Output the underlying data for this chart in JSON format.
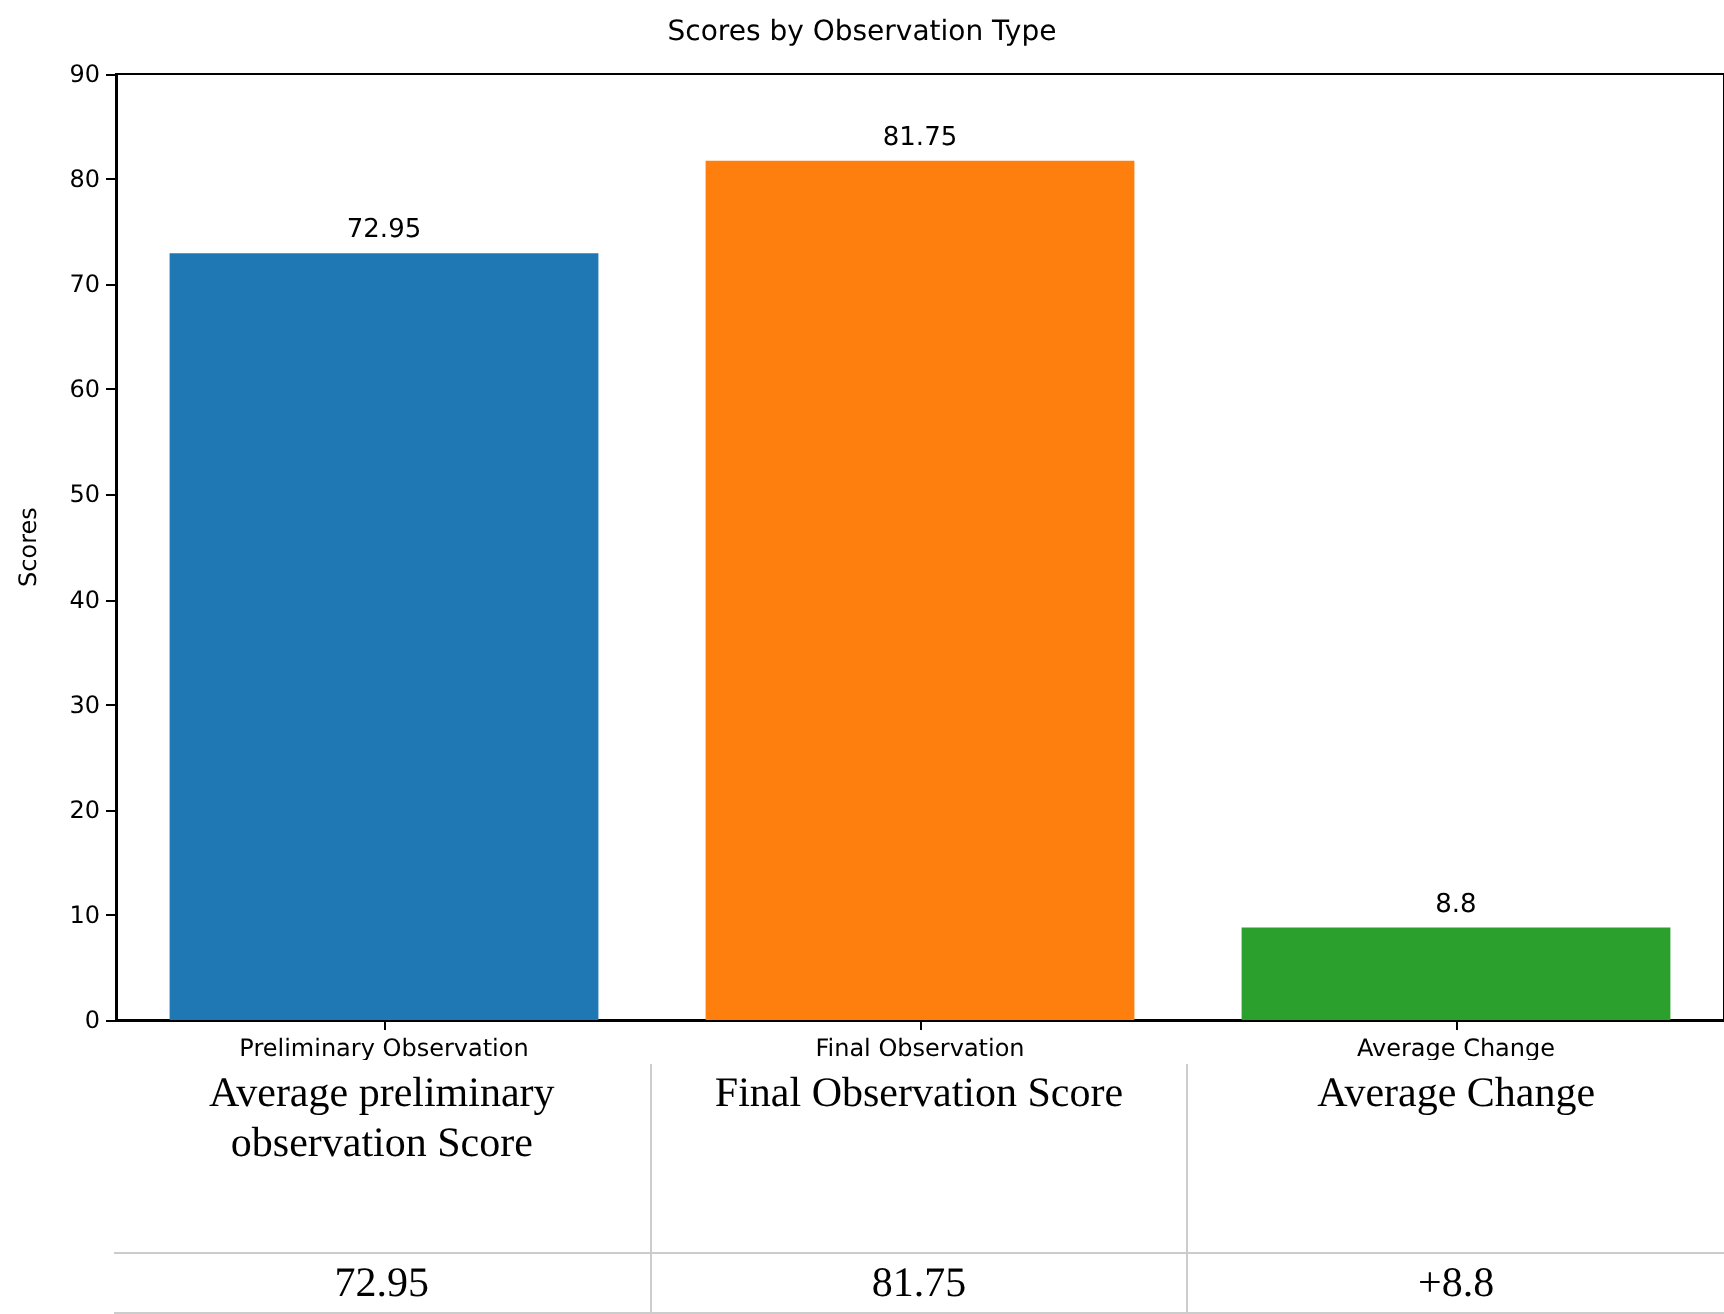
{
  "chart_data": {
    "type": "bar",
    "title": "Scores by Observation Type",
    "ylabel": "Scores",
    "categories": [
      "Preliminary Observation",
      "Final Observation",
      "Average Change"
    ],
    "values": [
      72.95,
      81.75,
      8.8
    ],
    "colors": [
      "#1f77b4",
      "#ff7f0e",
      "#2ca02c"
    ],
    "ylim": [
      0,
      90
    ],
    "yticks": [
      0,
      10,
      20,
      30,
      40,
      50,
      60,
      70,
      80,
      90
    ],
    "grid": false,
    "data_labels": true,
    "annotations": [
      "Average preliminary observation Score",
      "Final Observation Score",
      "Average Change",
      "72.95",
      "81.75",
      "+8.8"
    ]
  }
}
